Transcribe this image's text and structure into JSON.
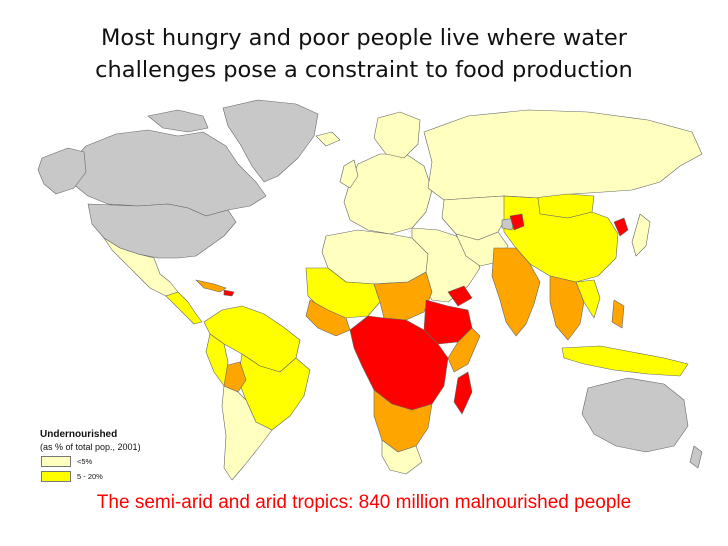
{
  "slide": {
    "title_lines": [
      "Most hungry and poor people live where water",
      "challenges pose a constraint to food production"
    ],
    "caption": "The semi-arid and arid tropics: 840 million malnourished people"
  },
  "legend": {
    "title": "Undernourished",
    "subtitle": "(as % of total pop., 2001)",
    "items": [
      {
        "label": "<5%",
        "color": "#ffffc0"
      },
      {
        "label": "5 - 20%",
        "color": "#ffff00"
      }
    ]
  },
  "map_colors": {
    "no_data": "#c8c8c8",
    "below_5": "#ffffc0",
    "from_5_to_20": "#ffff00",
    "from_20_to_35": "#ffa500",
    "above_35": "#ff0000",
    "border": "#666666"
  }
}
